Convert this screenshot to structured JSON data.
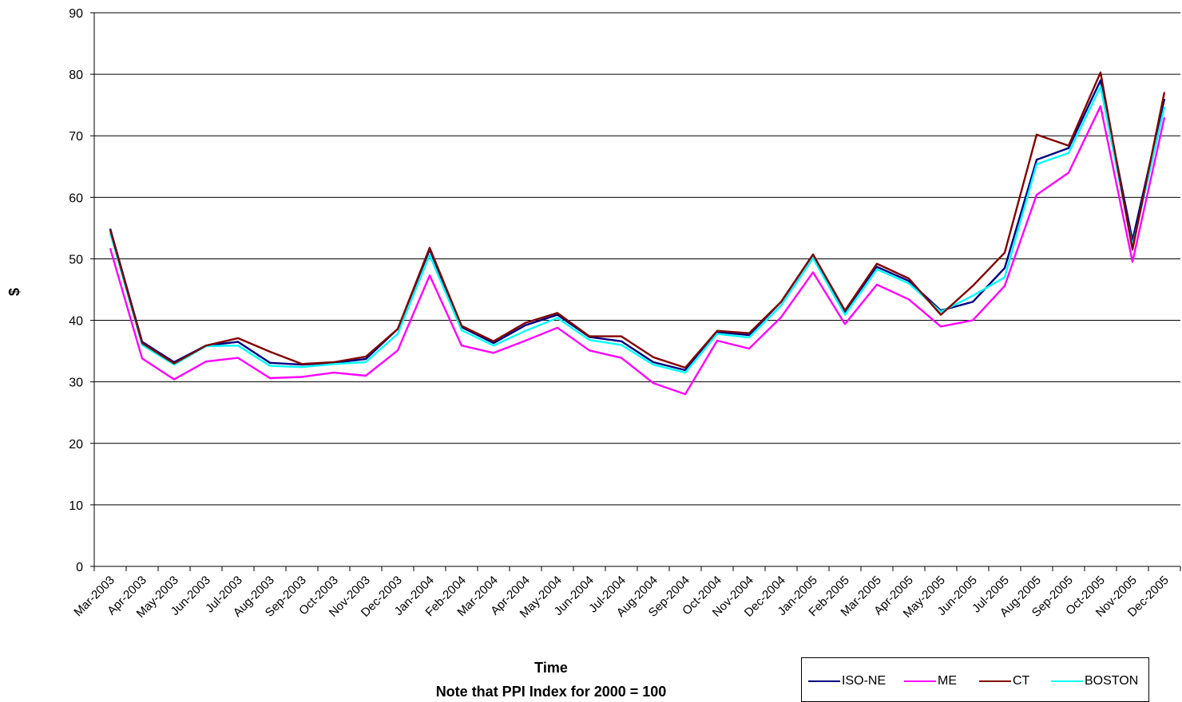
{
  "chart_data": {
    "type": "line",
    "title": "",
    "xlabel": "Time",
    "xlabel_note": "Note that PPI Index for 2000 = 100",
    "ylabel": "$",
    "ylim": [
      0,
      90
    ],
    "yticks": [
      0,
      10,
      20,
      30,
      40,
      50,
      60,
      70,
      80,
      90
    ],
    "grid": true,
    "legend_position": "bottom-right",
    "categories": [
      "Mar-2003",
      "Apr-2003",
      "May-2003",
      "Jun-2003",
      "Jul-2003",
      "Aug-2003",
      "Sep-2003",
      "Oct-2003",
      "Nov-2003",
      "Dec-2003",
      "Jan-2004",
      "Feb-2004",
      "Mar-2004",
      "Apr-2004",
      "May-2004",
      "Jun-2004",
      "Jul-2004",
      "Aug-2004",
      "Sep-2004",
      "Oct-2004",
      "Nov-2004",
      "Dec-2004",
      "Jan-2005",
      "Feb-2005",
      "Mar-2005",
      "Apr-2005",
      "May-2005",
      "Jun-2005",
      "Jul-2005",
      "Aug-2005",
      "Sep-2005",
      "Oct-2005",
      "Nov-2005",
      "Dec-2005"
    ],
    "series": [
      {
        "name": "ISO-NE",
        "color": "#000080",
        "values": [
          54.9,
          36.5,
          33.2,
          35.9,
          36.5,
          33.1,
          32.8,
          33.1,
          33.7,
          38.6,
          51.5,
          38.9,
          36.3,
          39.2,
          40.9,
          37.3,
          36.6,
          33.2,
          31.9,
          38.1,
          37.6,
          43.0,
          50.7,
          41.3,
          48.7,
          46.4,
          41.6,
          43.0,
          48.5,
          66.1,
          68.0,
          79.0,
          53.0,
          76.0
        ]
      },
      {
        "name": "ME",
        "color": "#ff00ff",
        "values": [
          51.7,
          33.8,
          30.4,
          33.3,
          33.9,
          30.6,
          30.8,
          31.5,
          31.0,
          35.1,
          47.3,
          35.9,
          34.7,
          36.7,
          38.8,
          35.1,
          33.9,
          29.8,
          28.0,
          36.7,
          35.4,
          40.5,
          47.8,
          39.4,
          45.8,
          43.4,
          39.0,
          40.0,
          45.6,
          60.4,
          64.0,
          74.8,
          49.5,
          73.0
        ]
      },
      {
        "name": "CT",
        "color": "#800000",
        "values": [
          54.7,
          36.3,
          33.0,
          35.9,
          37.1,
          34.9,
          32.9,
          33.2,
          34.1,
          38.6,
          51.8,
          39.1,
          36.6,
          39.6,
          41.2,
          37.4,
          37.4,
          34.0,
          32.3,
          38.3,
          37.9,
          43.0,
          50.7,
          41.6,
          49.2,
          46.8,
          40.9,
          45.6,
          51.0,
          70.2,
          68.4,
          80.3,
          51.5,
          77.1
        ]
      },
      {
        "name": "BOSTON",
        "color": "#00ffff",
        "values": [
          54.2,
          36.0,
          32.8,
          35.8,
          35.9,
          32.6,
          32.4,
          32.9,
          33.2,
          37.8,
          50.6,
          38.4,
          35.9,
          38.3,
          40.4,
          36.8,
          36.0,
          32.8,
          31.5,
          37.8,
          37.2,
          42.4,
          50.1,
          40.9,
          48.3,
          46.0,
          41.4,
          44.0,
          47.0,
          65.4,
          67.2,
          78.0,
          52.0,
          74.7
        ]
      }
    ]
  }
}
